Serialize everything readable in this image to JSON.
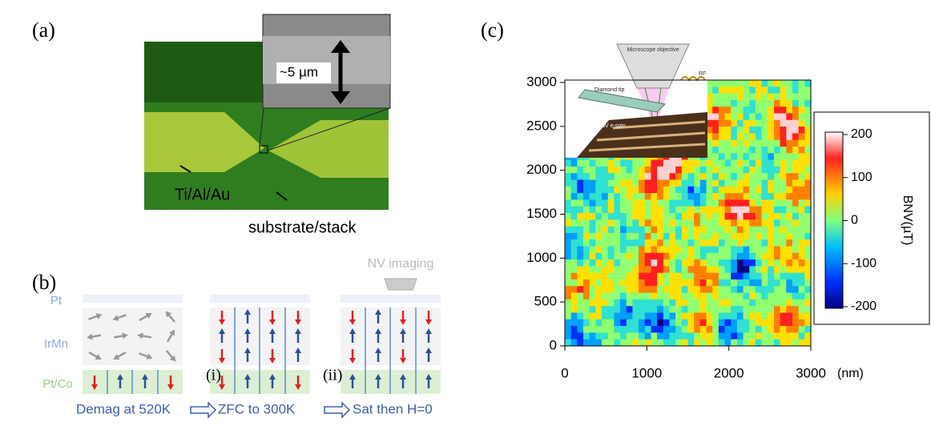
{
  "panels": [
    {
      "label": "(a)",
      "scale_label": "~5 µm",
      "annotations": [
        "Ti/Al/Au",
        "substrate/stack"
      ]
    },
    {
      "label": "(b)",
      "layers": [
        "Pt",
        "IrMn",
        "Pt/Co"
      ],
      "steps": [
        "(i)",
        "(ii)"
      ],
      "probe": "NV imaging",
      "process": [
        "Demag at 520K",
        "ZFC to 300K",
        "Sat then H=0"
      ]
    },
    {
      "label": "(c)",
      "inset_labels": [
        "Microscope objective",
        "Diamond tip",
        "NV e-spin",
        "RF"
      ],
      "xticks": [
        0,
        1000,
        2000,
        3000
      ],
      "x_unit": "(nm)",
      "yticks": [
        0,
        500,
        1000,
        1500,
        2000,
        2500,
        3000
      ],
      "colorbar_ticks": [
        200,
        100,
        0,
        -100,
        -200
      ],
      "colorbar_label": "BNV(µT)"
    }
  ]
}
